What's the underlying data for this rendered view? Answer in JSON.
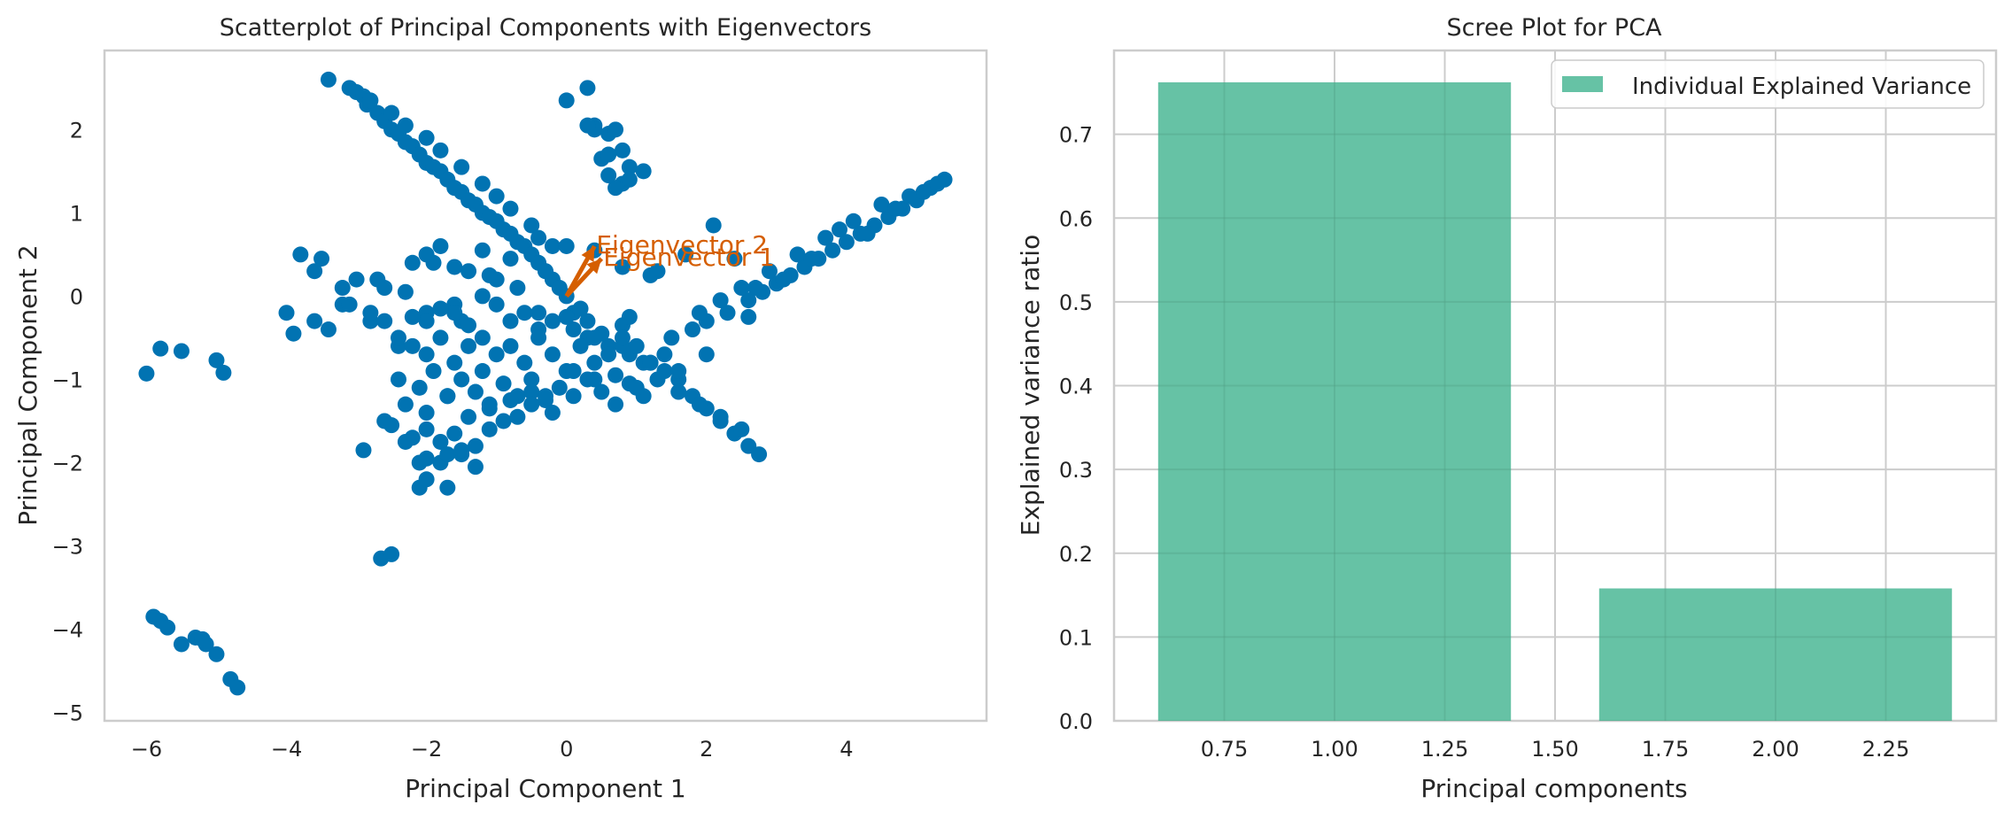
{
  "chart_data": [
    {
      "type": "scatter",
      "title": "Scatterplot of Principal Components with Eigenvectors",
      "xlabel": "Principal Component 1",
      "ylabel": "Principal Component 2",
      "xlim": [
        -6.6,
        6.0
      ],
      "ylim": [
        -5.1,
        2.95
      ],
      "xticks": [
        -6,
        -4,
        -2,
        0,
        2,
        4
      ],
      "yticks": [
        -5,
        -4,
        -3,
        -2,
        -1,
        0,
        1,
        2
      ],
      "grid": false,
      "point_color": "#0173b2",
      "arrow_color": "#d55e00",
      "series": [
        {
          "x": [
            -3.4,
            -3.1,
            -3.0,
            -2.9,
            -2.85,
            -2.7,
            -2.6,
            -2.5,
            -2.4,
            -2.3,
            -2.2,
            -2.1,
            -2.0,
            -1.9,
            -1.8,
            -1.7,
            -1.6,
            -1.5,
            -1.4,
            -1.3,
            -1.2,
            -1.1,
            -1.0,
            -0.9,
            -0.8,
            -0.7,
            -0.6,
            -0.5,
            -0.4,
            -0.3,
            -0.2,
            -0.1,
            0.0,
            -2.8,
            -2.5,
            -2.3,
            -2.0,
            -1.8,
            -1.5,
            -1.2,
            -1.0,
            -0.8,
            -0.5,
            -0.2,
            -0.4,
            0.1,
            0.3,
            0.6,
            0.9,
            1.2,
            1.4,
            1.6,
            1.8,
            2.0,
            2.2,
            2.4,
            2.6,
            2.75,
            0.3,
            0.5,
            0.8,
            1.1,
            1.3,
            1.6,
            1.9,
            2.2,
            2.5,
            1.5,
            1.8,
            2.0,
            2.3,
            2.6,
            2.8,
            3.0,
            3.2,
            3.4,
            3.6,
            3.8,
            4.0,
            4.2,
            4.4,
            4.6,
            4.8,
            5.0,
            5.2,
            5.4,
            1.9,
            2.2,
            2.5,
            2.9,
            3.3,
            3.7,
            4.1,
            4.5,
            4.9,
            5.3,
            2.0,
            2.6,
            3.1,
            3.5,
            3.9,
            4.3,
            4.7,
            5.1,
            -4.0,
            -3.8,
            -3.6,
            -3.4,
            -3.2,
            -3.0,
            -2.8,
            -2.6,
            -2.4,
            -2.2,
            -2.0,
            -1.8,
            -1.6,
            -1.4,
            -1.2,
            -1.0,
            -3.9,
            -3.5,
            -3.1,
            -2.7,
            -2.3,
            -1.9,
            -1.5,
            -1.1,
            -0.7,
            -0.3,
            0.1,
            -3.6,
            -3.2,
            -2.8,
            -2.4,
            -2.0,
            -1.6,
            -1.2,
            -0.8,
            -0.4,
            0.0,
            0.4,
            0.8,
            -2.2,
            -2.0,
            -1.8,
            -1.6,
            -1.4,
            -1.2,
            -1.0,
            -0.8,
            -0.6,
            -0.4,
            -0.2,
            0.0,
            0.2,
            0.4,
            0.6,
            0.8,
            1.0,
            1.2,
            1.4,
            1.6,
            -2.4,
            -2.1,
            -1.9,
            -1.7,
            -1.5,
            -1.3,
            -1.1,
            -0.9,
            -0.7,
            -0.5,
            -0.3,
            -0.1,
            0.1,
            0.3,
            0.5,
            0.7,
            0.9,
            1.1,
            -2.3,
            -2.0,
            -1.7,
            -1.4,
            -1.1,
            -0.8,
            -0.5,
            -0.2,
            0.1,
            0.4,
            0.7,
            1.0,
            -2.6,
            -2.2,
            -1.8,
            -1.4,
            -1.0,
            -0.6,
            -0.2,
            0.2,
            -2.0,
            -1.6,
            -1.2,
            -0.8,
            -0.4,
            0.0,
            0.4,
            0.8,
            1.2,
            -2.5,
            -2.2,
            -2.0,
            -1.8,
            -1.6,
            -1.5,
            -1.3,
            -1.1,
            -0.9,
            -0.7,
            -0.5,
            -0.3,
            -2.9,
            -2.6,
            -2.3,
            -2.1,
            -2.0,
            -1.8,
            -1.7,
            -1.5,
            -1.3,
            -2.1,
            -2.0,
            -1.7,
            -2.65,
            -2.5,
            0.9,
            1.3,
            1.7,
            2.1,
            2.4,
            2.7,
            0.3,
            0.4,
            0.6,
            0.7,
            0.8,
            0.9,
            0.8,
            0.7,
            0.6,
            0.5,
            0.4,
            0.0,
            0.3,
            0.6,
            0.9,
            1.1,
            -6.0,
            -5.8,
            -5.5,
            -5.0,
            -4.9,
            -5.9,
            -5.8,
            -5.7,
            -5.5,
            -5.3,
            -5.2,
            -5.15,
            -5.0,
            -4.8,
            -4.7
          ],
          "y": [
            2.6,
            2.5,
            2.45,
            2.4,
            2.3,
            2.2,
            2.1,
            2.0,
            1.95,
            1.85,
            1.8,
            1.7,
            1.6,
            1.55,
            1.5,
            1.4,
            1.3,
            1.25,
            1.15,
            1.1,
            1.0,
            0.95,
            0.9,
            0.8,
            0.75,
            0.65,
            0.6,
            0.5,
            0.4,
            0.3,
            0.2,
            0.1,
            0.0,
            2.35,
            2.2,
            2.05,
            1.9,
            1.75,
            1.55,
            1.35,
            1.2,
            1.05,
            0.85,
            0.6,
            -0.2,
            -0.4,
            -0.5,
            -0.6,
            -0.7,
            -0.8,
            -0.9,
            -1.0,
            -1.2,
            -1.35,
            -1.5,
            -1.65,
            -1.8,
            -1.9,
            -0.3,
            -0.45,
            -0.6,
            -0.8,
            -1.0,
            -1.15,
            -1.3,
            -1.45,
            -1.6,
            -0.5,
            -0.4,
            -0.3,
            -0.2,
            -0.05,
            0.05,
            0.15,
            0.25,
            0.35,
            0.45,
            0.55,
            0.65,
            0.75,
            0.85,
            0.95,
            1.05,
            1.15,
            1.3,
            1.4,
            -0.2,
            -0.05,
            0.1,
            0.3,
            0.5,
            0.7,
            0.9,
            1.1,
            1.2,
            1.35,
            -0.7,
            -0.25,
            0.2,
            0.45,
            0.8,
            0.75,
            1.05,
            1.25,
            -0.2,
            0.5,
            0.3,
            -0.4,
            -0.1,
            0.2,
            -0.3,
            0.1,
            -0.6,
            0.4,
            -0.2,
            0.6,
            -0.1,
            0.3,
            0.0,
            0.2,
            -0.45,
            0.45,
            -0.1,
            0.2,
            0.05,
            0.4,
            -0.3,
            0.25,
            0.1,
            0.3,
            -0.2,
            -0.3,
            0.1,
            -0.2,
            -0.5,
            -0.3,
            -0.2,
            -0.5,
            -0.3,
            -0.4,
            -0.25,
            -0.5,
            -0.35,
            -0.6,
            -0.7,
            -0.5,
            -0.8,
            -0.6,
            -0.9,
            -0.7,
            -0.6,
            -0.8,
            -0.5,
            -0.7,
            -0.9,
            -0.6,
            -0.8,
            -0.7,
            -0.5,
            -0.6,
            -0.8,
            -0.7,
            -0.9,
            -1.0,
            -1.1,
            -0.9,
            -1.2,
            -1.0,
            -1.15,
            -1.3,
            -1.05,
            -1.2,
            -1.0,
            -1.25,
            -1.1,
            -0.9,
            -1.0,
            -1.15,
            -0.95,
            -1.05,
            -1.2,
            -1.3,
            -1.4,
            -1.2,
            -1.45,
            -1.35,
            -1.25,
            -1.15,
            -1.4,
            -1.2,
            -1.0,
            -1.3,
            -1.1,
            -0.3,
            -0.25,
            -0.15,
            -0.35,
            -0.1,
            -0.2,
            -0.3,
            -0.15,
            0.5,
            0.35,
            0.55,
            0.45,
            0.7,
            0.6,
            0.55,
            0.35,
            0.25,
            -1.55,
            -1.7,
            -1.6,
            -1.75,
            -1.65,
            -1.9,
            -1.8,
            -1.6,
            -1.5,
            -1.45,
            -1.3,
            -1.2,
            -1.85,
            -1.5,
            -1.75,
            -2.0,
            -1.95,
            -2.0,
            -1.9,
            -1.85,
            -2.05,
            -2.3,
            -2.2,
            -2.3,
            -3.15,
            -3.1,
            -0.25,
            0.3,
            0.5,
            0.85,
            0.45,
            0.1,
            2.5,
            2.05,
            1.95,
            2.0,
            1.75,
            1.55,
            1.35,
            1.3,
            1.45,
            1.65,
            2.0,
            2.35,
            2.05,
            1.7,
            1.4,
            1.5,
            -0.93,
            -0.63,
            -0.66,
            -0.77,
            -0.92,
            -3.85,
            -3.9,
            -3.98,
            -4.18,
            -4.1,
            -4.12,
            -4.18,
            -4.3,
            -4.6,
            -4.7
          ]
        }
      ],
      "annotations": [
        {
          "label": "Eigenvector 2",
          "dx": 0.4,
          "dy": 0.6
        },
        {
          "label": "Eigenvector 1",
          "dx": 0.5,
          "dy": 0.45
        }
      ]
    },
    {
      "type": "bar",
      "title": "Scree Plot for PCA",
      "xlabel": "Principal components",
      "ylabel": "Explained variance ratio",
      "x": [
        1,
        2
      ],
      "values": [
        0.762,
        0.158
      ],
      "bar_width": 0.8,
      "xlim": [
        0.5,
        2.5
      ],
      "ylim": [
        0,
        0.8
      ],
      "xticks": [
        0.75,
        1.0,
        1.25,
        1.5,
        1.75,
        2.0,
        2.25
      ],
      "xtick_labels": [
        "0.75",
        "1.00",
        "1.25",
        "1.50",
        "1.75",
        "2.00",
        "2.25"
      ],
      "yticks": [
        0.0,
        0.1,
        0.2,
        0.3,
        0.4,
        0.5,
        0.6,
        0.7
      ],
      "ytick_labels": [
        "0.0",
        "0.1",
        "0.2",
        "0.3",
        "0.4",
        "0.5",
        "0.6",
        "0.7"
      ],
      "grid": true,
      "bar_color": "#66c2a5",
      "legend": {
        "label": "Individual Explained Variance",
        "position": "upper right"
      }
    }
  ]
}
